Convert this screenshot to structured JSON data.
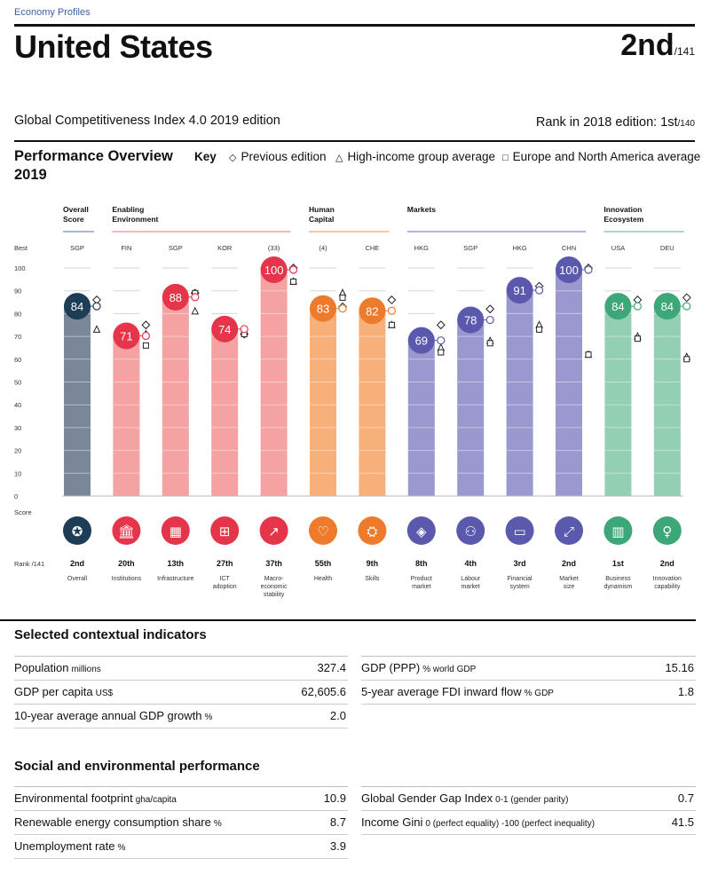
{
  "header": {
    "section_label": "Economy Profiles",
    "country": "United States",
    "rank": "2nd",
    "rank_total": "/141",
    "index_edition": "Global Competitiveness Index 4.0 2019 edition",
    "prev_rank_label": "Rank in 2018 edition: 1st",
    "prev_rank_total": "/140"
  },
  "overview": {
    "title_line1": "Performance Overview",
    "title_line2": "2019",
    "key_label": "Key",
    "key_items": [
      {
        "symbol": "◇",
        "label": "Previous edition"
      },
      {
        "symbol": "△",
        "label": "High-income group average"
      },
      {
        "symbol": "□",
        "label": "Europe and North America average"
      }
    ]
  },
  "chart_data": {
    "type": "bar",
    "ylim": [
      0,
      100
    ],
    "yticks": [
      0,
      10,
      20,
      30,
      40,
      50,
      60,
      70,
      80,
      90,
      100
    ],
    "best_label": "Best",
    "score_label": "Score",
    "rank_label": "Rank /141",
    "groups": [
      {
        "name": "Overall Score",
        "line1": "Overall",
        "line2": "Score",
        "start": 0,
        "end": 0,
        "color": "#5e7088"
      },
      {
        "name": "Enabling Environment",
        "line1": "Enabling",
        "line2": "Environment",
        "start": 1,
        "end": 4,
        "color": "#e8727a"
      },
      {
        "name": "Human Capital",
        "line1": "Human",
        "line2": "Capital",
        "start": 5,
        "end": 6,
        "color": "#ee8f40"
      },
      {
        "name": "Markets",
        "line1": "Markets",
        "line2": "",
        "start": 7,
        "end": 10,
        "color": "#6c6ab5"
      },
      {
        "name": "Innovation Ecosystem",
        "line1": "Innovation",
        "line2": "Ecosystem",
        "start": 11,
        "end": 12,
        "color": "#5eb08a"
      }
    ],
    "pillars": [
      {
        "name": "Overall",
        "name2": "",
        "name3": "",
        "best": "SGP",
        "score": 84,
        "rank": "2nd",
        "prev": 86,
        "high": 73,
        "europe": null,
        "bar": "#7a8799",
        "circle": "#1d3c56",
        "icon": "medal-icon",
        "glyph": "✪"
      },
      {
        "name": "Institutions",
        "name2": "",
        "name3": "",
        "best": "FIN",
        "score": 71,
        "rank": "20th",
        "prev": 75,
        "high": 71,
        "europe": 66,
        "bar": "#f4a2a2",
        "circle": "#e5354a",
        "icon": "institution-icon",
        "glyph": "🏛"
      },
      {
        "name": "Infrastructure",
        "name2": "",
        "name3": "",
        "best": "SGP",
        "score": 88,
        "rank": "13th",
        "prev": 89,
        "high": 81,
        "europe": 89,
        "bar": "#f4a2a2",
        "circle": "#e5354a",
        "icon": "infrastructure-icon",
        "glyph": "▦"
      },
      {
        "name": "ICT",
        "name2": "adoption",
        "name3": "",
        "best": "KOR",
        "score": 74,
        "rank": "27th",
        "prev": 71,
        "high": 72,
        "europe": 71,
        "bar": "#f4a2a2",
        "circle": "#e5354a",
        "icon": "chip-icon",
        "glyph": "⊞"
      },
      {
        "name": "Macro-",
        "name2": "economic",
        "name3": "stability",
        "best": "(33)",
        "score": 100,
        "rank": "37th",
        "prev": 100,
        "high": 94,
        "europe": 94,
        "bar": "#f4a2a2",
        "circle": "#e5354a",
        "icon": "macro-stability-icon",
        "glyph": "↗"
      },
      {
        "name": "Health",
        "name2": "",
        "name3": "",
        "best": "(4)",
        "score": 83,
        "rank": "55th",
        "prev": 83,
        "high": 89,
        "europe": 87,
        "bar": "#f7b07a",
        "circle": "#ee7a2b",
        "icon": "health-icon",
        "glyph": "♡"
      },
      {
        "name": "Skills",
        "name2": "",
        "name3": "",
        "best": "CHE",
        "score": 82,
        "rank": "9th",
        "prev": 86,
        "high": 75,
        "europe": 75,
        "bar": "#f7b07a",
        "circle": "#ee7a2b",
        "icon": "skills-icon",
        "glyph": "⛭"
      },
      {
        "name": "Product",
        "name2": "market",
        "name3": "",
        "best": "HKG",
        "score": 69,
        "rank": "8th",
        "prev": 75,
        "high": 65,
        "europe": 63,
        "bar": "#9a98cf",
        "circle": "#5b59ad",
        "icon": "product-market-icon",
        "glyph": "◈"
      },
      {
        "name": "Labour",
        "name2": "market",
        "name3": "",
        "best": "SGP",
        "score": 78,
        "rank": "4th",
        "prev": 82,
        "high": 68,
        "europe": 67,
        "bar": "#9a98cf",
        "circle": "#5b59ad",
        "icon": "labour-market-icon",
        "glyph": "⚇"
      },
      {
        "name": "Financial",
        "name2": "system",
        "name3": "",
        "best": "HKG",
        "score": 91,
        "rank": "3rd",
        "prev": 92,
        "high": 75,
        "europe": 73,
        "bar": "#9a98cf",
        "circle": "#5b59ad",
        "icon": "financial-system-icon",
        "glyph": "▭"
      },
      {
        "name": "Market",
        "name2": "size",
        "name3": "",
        "best": "CHN",
        "score": 100,
        "rank": "2nd",
        "prev": 100,
        "high": 62,
        "europe": 62,
        "bar": "#9a98cf",
        "circle": "#5b59ad",
        "icon": "market-size-icon",
        "glyph": "⤢"
      },
      {
        "name": "Business",
        "name2": "dynamism",
        "name3": "",
        "best": "USA",
        "score": 84,
        "rank": "1st",
        "prev": 86,
        "high": 70,
        "europe": 69,
        "bar": "#93cfb2",
        "circle": "#3ea77a",
        "icon": "business-dynamism-icon",
        "glyph": "▥"
      },
      {
        "name": "Innovation",
        "name2": "capability",
        "name3": "",
        "best": "DEU",
        "score": 84,
        "rank": "2nd",
        "prev": 87,
        "high": 61,
        "europe": 60,
        "bar": "#93cfb2",
        "circle": "#3ea77a",
        "icon": "innovation-icon",
        "glyph": "♀"
      }
    ]
  },
  "contextual": {
    "title": "Selected contextual indicators",
    "left": [
      {
        "label": "Population",
        "unit": "millions",
        "value": "327.4"
      },
      {
        "label": "GDP per capita",
        "unit": "US$",
        "value": "62,605.6"
      },
      {
        "label": "10-year average annual GDP growth",
        "unit": "%",
        "value": "2.0"
      }
    ],
    "right": [
      {
        "label": "GDP (PPP)",
        "unit": "% world GDP",
        "value": "15.16"
      },
      {
        "label": "5-year average FDI inward flow",
        "unit": "% GDP",
        "value": "1.8"
      }
    ]
  },
  "social": {
    "title": "Social and environmental performance",
    "left": [
      {
        "label": "Environmental footprint",
        "unit": "gha/capita",
        "value": "10.9"
      },
      {
        "label": "Renewable energy consumption share",
        "unit": "%",
        "value": "8.7"
      },
      {
        "label": "Unemployment rate",
        "unit": "%",
        "value": "3.9"
      }
    ],
    "right": [
      {
        "label": "Global Gender Gap Index",
        "unit": "0-1 (gender parity)",
        "value": "0.7"
      },
      {
        "label": "Income Gini",
        "unit": "0 (perfect equality) -100 (perfect inequality)",
        "value": "41.5"
      }
    ]
  }
}
